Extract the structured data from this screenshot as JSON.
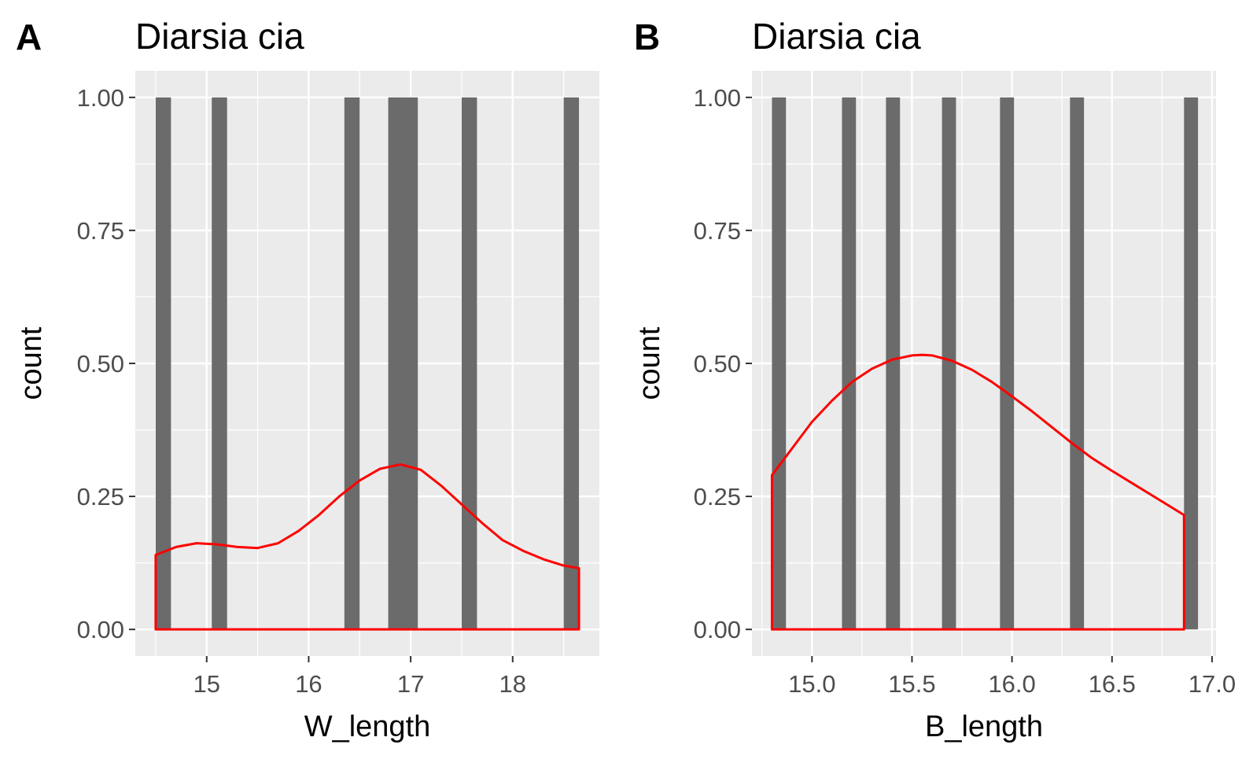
{
  "colors": {
    "panel_bg": "#EBEBEB",
    "grid": "#FFFFFF",
    "bar_fill": "#6B6B6B",
    "density_line": "#FF0000",
    "text": "#000000",
    "tick_text": "#4D4D4D",
    "tick_mark": "#333333"
  },
  "chart_data": [
    {
      "type": "bar",
      "panel_tag": "A",
      "title": "Diarsia cia",
      "xlabel": "W_length",
      "ylabel": "count",
      "xlim": [
        14.3,
        18.85
      ],
      "ylim": [
        -0.05,
        1.05
      ],
      "x_ticks": [
        15,
        16,
        17,
        18
      ],
      "x_tick_labels": [
        "15",
        "16",
        "17",
        "18"
      ],
      "y_ticks": [
        0,
        0.25,
        0.5,
        0.75,
        1.0
      ],
      "y_tick_labels": [
        "0.00",
        "0.25",
        "0.50",
        "0.75",
        "1.00"
      ],
      "grid": true,
      "bars": [
        {
          "x0": 14.5,
          "x1": 14.65,
          "count": 1
        },
        {
          "x0": 15.05,
          "x1": 15.2,
          "count": 1
        },
        {
          "x0": 16.35,
          "x1": 16.5,
          "count": 1
        },
        {
          "x0": 16.78,
          "x1": 17.07,
          "count": 1
        },
        {
          "x0": 17.5,
          "x1": 17.65,
          "count": 1
        },
        {
          "x0": 18.5,
          "x1": 18.65,
          "count": 1
        }
      ],
      "density": {
        "x": [
          14.5,
          14.7,
          14.9,
          15.1,
          15.3,
          15.5,
          15.7,
          15.9,
          16.1,
          16.3,
          16.5,
          16.7,
          16.9,
          17.1,
          17.3,
          17.5,
          17.7,
          17.9,
          18.1,
          18.3,
          18.5,
          18.65
        ],
        "y": [
          0.14,
          0.155,
          0.162,
          0.16,
          0.155,
          0.153,
          0.162,
          0.185,
          0.215,
          0.25,
          0.28,
          0.302,
          0.31,
          0.3,
          0.27,
          0.235,
          0.2,
          0.168,
          0.148,
          0.132,
          0.12,
          0.115
        ]
      }
    },
    {
      "type": "bar",
      "panel_tag": "B",
      "title": "Diarsia cia",
      "xlabel": "B_length",
      "ylabel": "count",
      "xlim": [
        14.7,
        17.02
      ],
      "ylim": [
        -0.05,
        1.05
      ],
      "x_ticks": [
        15.0,
        15.5,
        16.0,
        16.5,
        17.0
      ],
      "x_tick_labels": [
        "15.0",
        "15.5",
        "16.0",
        "16.5",
        "17.0"
      ],
      "y_ticks": [
        0,
        0.25,
        0.5,
        0.75,
        1.0
      ],
      "y_tick_labels": [
        "0.00",
        "0.25",
        "0.50",
        "0.75",
        "1.00"
      ],
      "grid": true,
      "bars": [
        {
          "x0": 14.8,
          "x1": 14.87,
          "count": 1
        },
        {
          "x0": 15.15,
          "x1": 15.22,
          "count": 1
        },
        {
          "x0": 15.37,
          "x1": 15.44,
          "count": 1
        },
        {
          "x0": 15.65,
          "x1": 15.72,
          "count": 1
        },
        {
          "x0": 15.94,
          "x1": 16.01,
          "count": 1
        },
        {
          "x0": 16.29,
          "x1": 16.36,
          "count": 1
        },
        {
          "x0": 16.86,
          "x1": 16.93,
          "count": 1
        }
      ],
      "density": {
        "x": [
          14.8,
          14.9,
          15.0,
          15.1,
          15.2,
          15.3,
          15.4,
          15.5,
          15.55,
          15.6,
          15.7,
          15.8,
          15.9,
          16.0,
          16.1,
          16.2,
          16.3,
          16.4,
          16.5,
          16.6,
          16.7,
          16.86
        ],
        "y": [
          0.29,
          0.34,
          0.39,
          0.43,
          0.465,
          0.49,
          0.507,
          0.515,
          0.516,
          0.515,
          0.505,
          0.488,
          0.465,
          0.438,
          0.41,
          0.38,
          0.35,
          0.322,
          0.298,
          0.275,
          0.252,
          0.215
        ]
      }
    }
  ]
}
